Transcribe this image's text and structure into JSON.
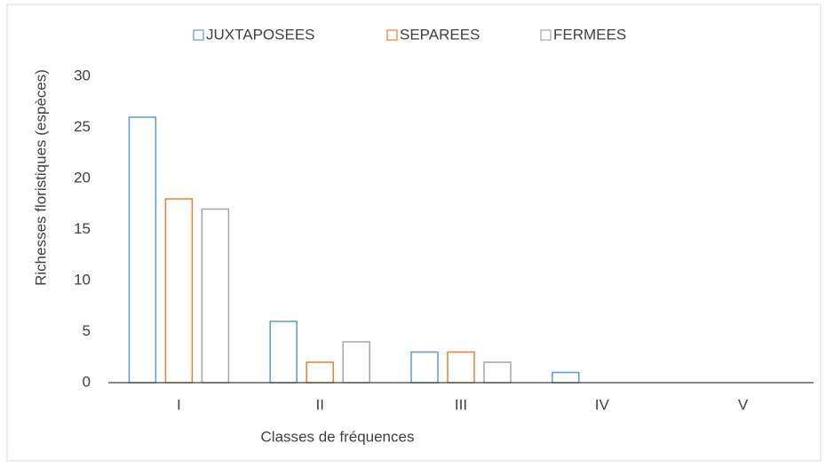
{
  "chart_data": {
    "type": "bar",
    "x_label": "Classes de fréquences",
    "y_label": "Richesses floristiques (espèces)",
    "categories": [
      "I",
      "II",
      "III",
      "IV",
      "V"
    ],
    "series": [
      {
        "name": "JUXTAPOSEES",
        "color": "#5b9bd5",
        "values": [
          26,
          6,
          3,
          1,
          0
        ]
      },
      {
        "name": "SEPAREES",
        "color": "#ed7d31",
        "values": [
          18,
          2,
          3,
          0,
          0
        ]
      },
      {
        "name": "FERMEES",
        "color": "#a5a5a5",
        "values": [
          17,
          4,
          2,
          0,
          0
        ]
      }
    ],
    "ylim": [
      0,
      30
    ],
    "yticks": [
      0,
      5,
      10,
      15,
      20,
      25,
      30
    ],
    "grid": false,
    "legend": "top"
  }
}
